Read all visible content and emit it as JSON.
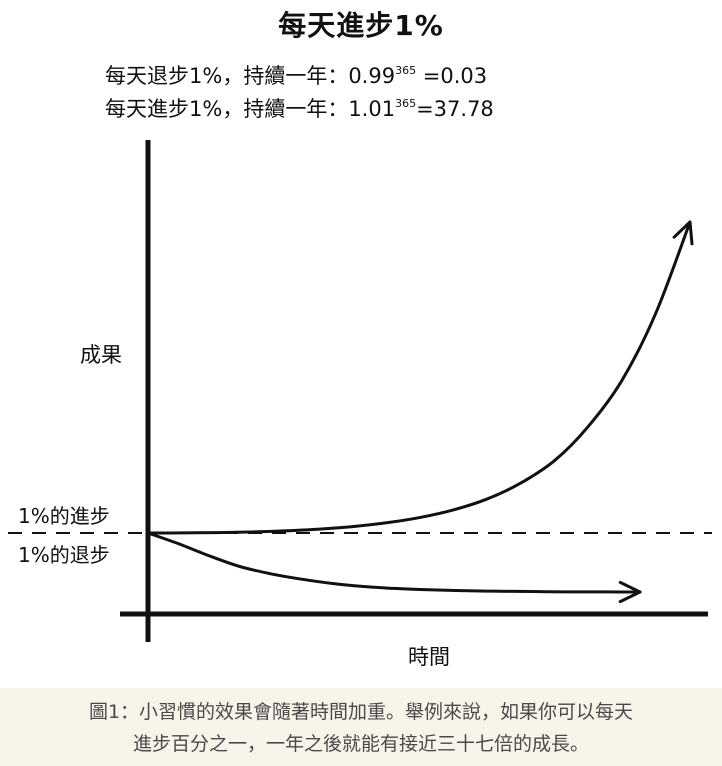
{
  "chart_data": {
    "type": "line",
    "title": "每天進步1%",
    "formulas": [
      {
        "text": "每天退步1%，持續一年：0.99",
        "exp": "365",
        "result": " =0.03"
      },
      {
        "text": "每天進步1%，持續一年：1.01",
        "exp": "365",
        "result": "=37.78"
      }
    ],
    "ylabel": "成果",
    "xlabel": "時間",
    "series": [
      {
        "name": "1%的進步",
        "values": [
          1,
          1.01,
          1.05,
          1.12,
          1.25,
          1.45,
          1.75,
          2.2,
          2.8,
          3.7,
          5,
          6.9,
          9.6,
          13.5,
          19,
          27,
          37.78
        ]
      },
      {
        "name": "1%的退步",
        "values": [
          1,
          0.82,
          0.62,
          0.45,
          0.33,
          0.24,
          0.17,
          0.12,
          0.09,
          0.07,
          0.055,
          0.045,
          0.04,
          0.035,
          0.032,
          0.031,
          0.03
        ]
      }
    ],
    "x": [
      0,
      23,
      46,
      68,
      91,
      114,
      137,
      160,
      182,
      205,
      228,
      251,
      274,
      296,
      319,
      342,
      365
    ],
    "baseline_dashed": true,
    "grid": false,
    "legend": "inline-left"
  },
  "caption": {
    "line1": "圖1：小習慣的效果會隨著時間加重。舉例來說，如果你可以每天",
    "line2": "進步百分之一，一年之後就能有接近三十七倍的成長。"
  },
  "colors": {
    "ink": "#111111",
    "caption_bg": "#f8f4ea",
    "caption_text": "#4a4a4a"
  }
}
